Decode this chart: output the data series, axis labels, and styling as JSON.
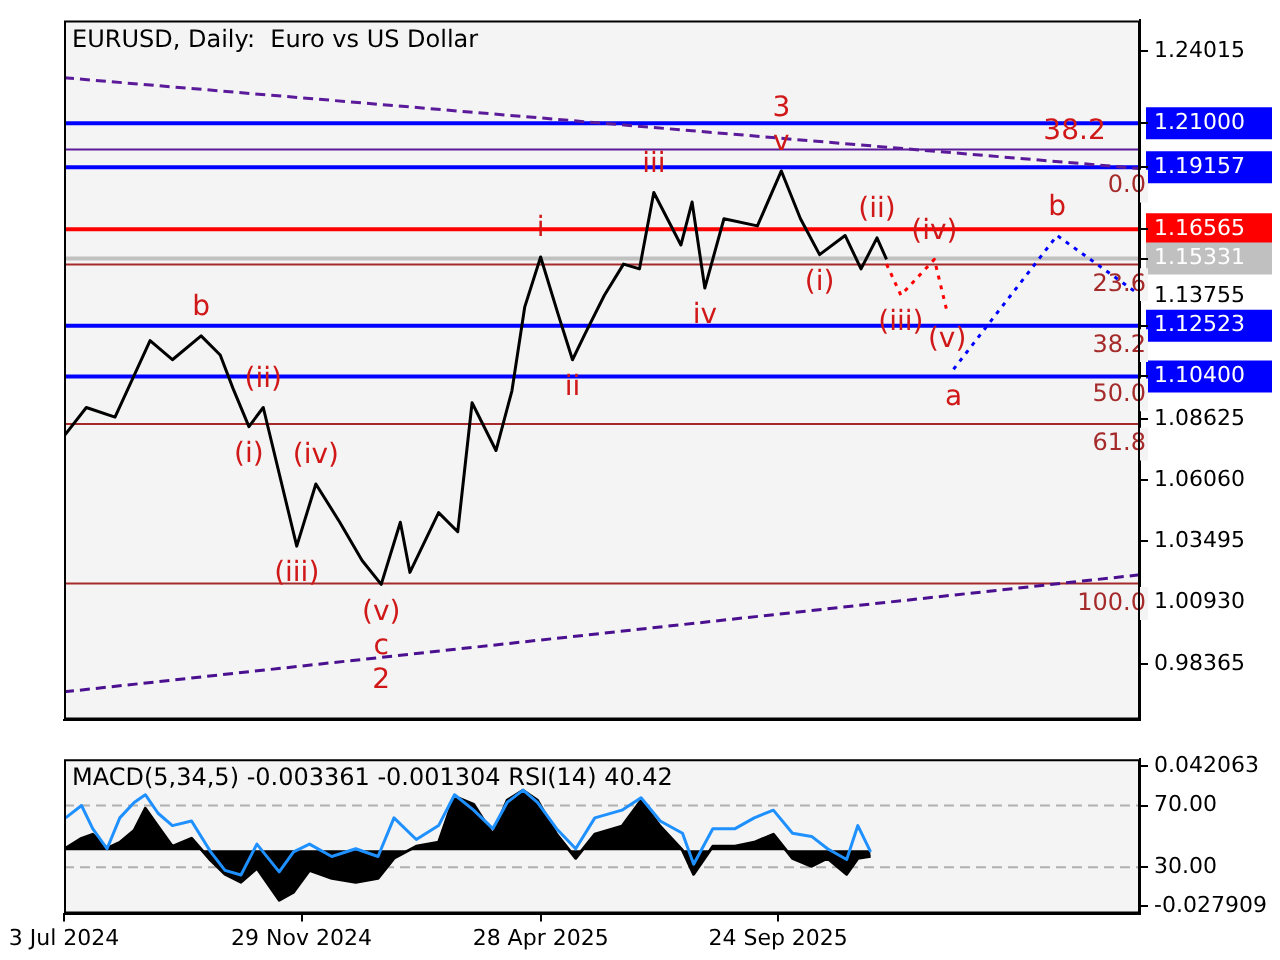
{
  "chart_data": [
    {
      "type": "line",
      "title": "EURUSD, Daily:  Euro vs US Dollar",
      "xlim": [
        "2024-07-03",
        "2026-05-09"
      ],
      "ylim": [
        0.9604,
        1.253
      ],
      "y2lim": [
        132.6,
        -34.9
      ],
      "tick_labels": "y",
      "grid": false,
      "legend": false,
      "marker": "none",
      "yticks": [
        1.24015,
        {
          "value": 1.21,
          "label": "1.21000"
        },
        1.19157,
        1.16565,
        1.15331,
        1.13755,
        1.12523,
        {
          "value": 1.104,
          "label": "1.10400"
        },
        1.08625,
        {
          "value": 1.0606,
          "label": "1.06060"
        },
        1.03495,
        {
          "value": 1.0093,
          "label": "1.00930"
        },
        0.98365
      ],
      "y2ticks": [
        {
          "value": 0,
          "label": "0.0"
        },
        23.6,
        38.2,
        {
          "value": 50,
          "label": "50.0"
        },
        61.8,
        {
          "value": 100,
          "label": "100.0"
        }
      ],
      "series": [
        {
          "color": "#000000",
          "line_style": "solid",
          "x": [
            "2024-07-03",
            "2024-07-17",
            "2024-08-04",
            "2024-08-26",
            "2024-09-09",
            "2024-09-27",
            "2024-10-09",
            "2024-10-17",
            "2024-10-27",
            "2024-11-05",
            "2024-11-26",
            "2024-12-08",
            "2024-12-23",
            "2025-01-06",
            "2025-01-18",
            "2025-01-30",
            "2025-02-05",
            "2025-02-23",
            "2025-03-07",
            "2025-03-16",
            "2025-03-31",
            "2025-04-10",
            "2025-04-18",
            "2025-04-28",
            "2025-05-09",
            "2025-05-18",
            "2025-05-26",
            "2025-06-07",
            "2025-06-19",
            "2025-06-29",
            "2025-07-08",
            "2025-07-25",
            "2025-08-01",
            "2025-08-09",
            "2025-08-21",
            "2025-09-11",
            "2025-09-26",
            "2025-10-08",
            "2025-10-20",
            "2025-11-05",
            "2025-11-15",
            "2025-11-25",
            "2025-12-01"
          ],
          "values": [
            1.079,
            1.091,
            1.087,
            1.119,
            1.111,
            1.121,
            1.113,
            1.099,
            1.083,
            1.091,
            1.033,
            1.059,
            1.043,
            1.027,
            1.017,
            1.043,
            1.022,
            1.047,
            1.039,
            1.093,
            1.073,
            1.098,
            1.133,
            1.154,
            1.13,
            1.111,
            1.122,
            1.138,
            1.151,
            1.149,
            1.181,
            1.159,
            1.177,
            1.141,
            1.17,
            1.167,
            1.19,
            1.17,
            1.155,
            1.163,
            1.149,
            1.162,
            1.153
          ]
        },
        {
          "color": "#5b1a9a",
          "line_style": "dashed",
          "x": [
            "2024-07-03",
            "2026-05-09"
          ],
          "values": [
            1.229,
            1.191
          ]
        },
        {
          "color": "#4a1090",
          "line_style": "dashed",
          "x": [
            "2024-07-03",
            "2026-05-09"
          ],
          "values": [
            0.972,
            1.021
          ]
        },
        {
          "color": "#0000ff",
          "line_style": "dotted",
          "x": [
            "2026-01-12",
            "2026-03-18",
            "2026-05-09"
          ],
          "values": [
            1.107,
            1.163,
            1.138
          ]
        },
        {
          "color": "#ff0000",
          "line_style": "dotted",
          "x": [
            "2025-12-01",
            "2025-12-10",
            "2025-12-31",
            "2026-01-08"
          ],
          "values": [
            1.151,
            1.138,
            1.153,
            1.131
          ]
        }
      ],
      "ref_lines": [
        {
          "axis": "y",
          "value": 1.21,
          "color": "#0000ff"
        },
        {
          "axis": "y",
          "value": 1.19157,
          "color": "#0000ff"
        },
        {
          "axis": "y",
          "value": 1.16565,
          "color": "#ff0000"
        },
        {
          "axis": "y",
          "value": 1.15331,
          "color": "#c0c0c0"
        },
        {
          "axis": "y",
          "value": 1.12523,
          "color": "#0000ff"
        },
        {
          "axis": "y",
          "value": 1.104,
          "color": "#0000ff"
        },
        {
          "axis": "y",
          "value": 1.199,
          "color": "#5b1a9a",
          "line_style": "solid"
        },
        {
          "axis": "y2",
          "value": 23.6,
          "color": "#a52a2a"
        },
        {
          "axis": "y2",
          "value": 61.8,
          "color": "#a52a2a"
        },
        {
          "axis": "y2",
          "value": 100,
          "color": "#a52a2a"
        }
      ],
      "annotations": [
        {
          "text": "38.2",
          "x": "2026-04-20",
          "y": 1.199
        },
        {
          "text": "b",
          "x": "2024-09-27",
          "y": 1.121
        },
        {
          "text": "(ii)",
          "x": "2024-11-05",
          "y": 1.091
        },
        {
          "text": "(i)",
          "x": "2024-10-27",
          "y": 1.083
        },
        {
          "text": "(iv)",
          "x": "2024-12-08",
          "y": 1.059
        },
        {
          "text": "(iii)",
          "x": "2024-11-26",
          "y": 1.033
        },
        {
          "text": "(v)",
          "x": "2025-01-18",
          "y": 1.017
        },
        {
          "text": "c",
          "x": "2025-01-18",
          "y": 1.017
        },
        {
          "text": "2",
          "x": "2025-01-18",
          "y": 1.017
        },
        {
          "text": "i",
          "x": "2025-04-28",
          "y": 1.154
        },
        {
          "text": "ii",
          "x": "2025-05-18",
          "y": 1.111
        },
        {
          "text": "iii",
          "x": "2025-07-08",
          "y": 1.181
        },
        {
          "text": "iv",
          "x": "2025-08-09",
          "y": 1.141
        },
        {
          "text": "v",
          "x": "2025-09-26",
          "y": 1.19
        },
        {
          "text": "3",
          "x": "2025-09-26",
          "y": 1.19
        },
        {
          "text": "(i)",
          "x": "2025-10-20",
          "y": 1.155
        },
        {
          "text": "(ii)",
          "x": "2025-11-25",
          "y": 1.162
        },
        {
          "text": "(iii)",
          "x": "2025-12-10",
          "y": 1.138
        },
        {
          "text": "(iv)",
          "x": "2025-12-31",
          "y": 1.153
        },
        {
          "text": "(v)",
          "x": "2026-01-08",
          "y": 1.131
        },
        {
          "text": "a",
          "x": "2026-01-12",
          "y": 1.107
        },
        {
          "text": "b",
          "x": "2026-03-18",
          "y": 1.163
        }
      ]
    },
    {
      "type": "area",
      "title": "MACD(5,34,5) -0.003361 -0.001304 RSI(14) 40.42",
      "xlim": [
        "2024-07-03",
        "2026-05-09"
      ],
      "ylim": [
        -0.0317,
        0.0456
      ],
      "y2lim": [
        0,
        100
      ],
      "grid": false,
      "legend": false,
      "marker": "none",
      "yticks": [
        0.042063,
        -0.027909
      ],
      "y2ticks": [
        {
          "value": 70,
          "label": "70.00"
        },
        {
          "value": 30,
          "label": "30.00"
        }
      ],
      "xticks": [
        {
          "value": "2024-07-03",
          "label": "3 Jul 2024"
        },
        {
          "value": "2024-11-29",
          "label": "29 Nov 2024"
        },
        {
          "value": "2025-04-28",
          "label": "28 Apr 2025"
        },
        {
          "value": "2025-09-24",
          "label": "24 Sep 2025"
        }
      ],
      "x": [
        "2024-07-04",
        "2024-07-14",
        "2024-07-21",
        "2024-07-30",
        "2024-08-07",
        "2024-08-16",
        "2024-08-23",
        "2024-08-31",
        "2024-09-09",
        "2024-09-21",
        "2024-10-03",
        "2024-10-12",
        "2024-10-22",
        "2024-11-01",
        "2024-11-15",
        "2024-11-24",
        "2024-12-04",
        "2024-12-18",
        "2025-01-02",
        "2025-01-16",
        "2025-01-26",
        "2025-02-09",
        "2025-02-23",
        "2025-03-05",
        "2025-03-17",
        "2025-03-29",
        "2025-04-07",
        "2025-04-17",
        "2025-04-26",
        "2025-05-08",
        "2025-05-20",
        "2025-06-01",
        "2025-06-18",
        "2025-06-30",
        "2025-07-12",
        "2025-07-26",
        "2025-08-02",
        "2025-08-14",
        "2025-08-28",
        "2025-09-09",
        "2025-09-21",
        "2025-10-03",
        "2025-10-15",
        "2025-10-25",
        "2025-11-06",
        "2025-11-13",
        "2025-11-21"
      ],
      "series": [
        {
          "color": "#000000",
          "values": [
            0.001,
            0.006,
            0.008,
            0.001,
            0.004,
            0.01,
            0.021,
            0.012,
            0.002,
            0.006,
            -0.005,
            -0.012,
            -0.016,
            -0.009,
            -0.025,
            -0.021,
            -0.01,
            -0.014,
            -0.016,
            -0.014,
            -0.004,
            0.002,
            0.004,
            0.027,
            0.023,
            0.008,
            0.025,
            0.03,
            0.025,
            0.008,
            -0.004,
            0.008,
            0.012,
            0.025,
            0.012,
            0.0,
            -0.012,
            0.002,
            0.002,
            0.004,
            0.008,
            -0.004,
            -0.008,
            -0.004,
            -0.012,
            -0.004,
            -0.003
          ]
        },
        {
          "type": "line",
          "color": "#1e90ff",
          "axis": "y2",
          "line_style": "solid",
          "values": [
            62,
            70,
            55,
            42,
            62,
            72,
            77,
            65,
            57,
            60,
            40,
            28,
            25,
            45,
            27,
            40,
            45,
            37,
            42,
            37,
            62,
            48,
            57,
            77,
            67,
            55,
            72,
            80,
            72,
            55,
            42,
            62,
            67,
            75,
            60,
            52,
            32,
            55,
            55,
            62,
            67,
            52,
            50,
            42,
            35,
            57,
            40
          ]
        }
      ],
      "ref_lines": [
        {
          "axis": "y2",
          "value": 70,
          "color": "#b0b0b0",
          "line_style": "dashed"
        },
        {
          "axis": "y2",
          "value": 30,
          "color": "#b0b0b0",
          "line_style": "dashed"
        }
      ]
    }
  ]
}
